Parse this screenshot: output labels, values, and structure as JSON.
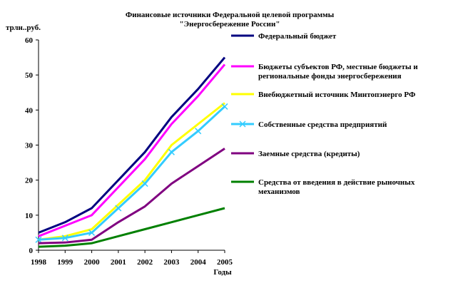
{
  "chart_data": {
    "type": "line",
    "title": [
      "Финансовые источники Федеральной целевой программы",
      "\"Энергосбережение России\""
    ],
    "ylabel": "трлн..руб.",
    "xlabel": "Годы",
    "ylim": [
      0,
      60
    ],
    "yticks": [
      "0",
      "10",
      "20",
      "30",
      "40",
      "50",
      "60"
    ],
    "yticks_values": [
      0,
      10,
      20,
      30,
      40,
      50,
      60
    ],
    "x": [
      "1998",
      "1999",
      "2000",
      "2001",
      "2002",
      "2003",
      "2004",
      "2005"
    ],
    "grid": false,
    "legend_position": "right",
    "series": [
      {
        "name": [
          "Федеральный бюджет"
        ],
        "color": "#000080",
        "marker": "none",
        "values": [
          5,
          8,
          12,
          20,
          28,
          38,
          46,
          55
        ]
      },
      {
        "name": [
          "Бюджеты субъектов РФ, местные бюджеты и",
          "региональные фонды энергосбережения"
        ],
        "color": "#ff00ff",
        "marker": "none",
        "values": [
          4,
          7,
          10,
          18,
          26,
          36,
          44,
          53
        ]
      },
      {
        "name": [
          "Внебюджетный источник Минтопэнерго РФ"
        ],
        "color": "#ffff00",
        "marker": "none",
        "values": [
          3,
          4,
          6,
          13,
          20,
          30,
          36,
          42
        ]
      },
      {
        "name": [
          "Собственные средства предприятий"
        ],
        "color": "#33ccff",
        "marker": "x",
        "values": [
          3,
          3.5,
          5,
          12,
          19,
          28,
          34,
          41
        ]
      },
      {
        "name": [
          "Заемные средства (кредиты)"
        ],
        "color": "#800080",
        "marker": "none",
        "values": [
          2,
          2.2,
          3,
          8,
          12.5,
          19,
          24,
          29
        ]
      },
      {
        "name": [
          "Средства от введения в действие рыночных",
          "механизмов"
        ],
        "color": "#008000",
        "marker": "none",
        "values": [
          1,
          1.3,
          2,
          4,
          6,
          8,
          10,
          12
        ]
      }
    ]
  }
}
